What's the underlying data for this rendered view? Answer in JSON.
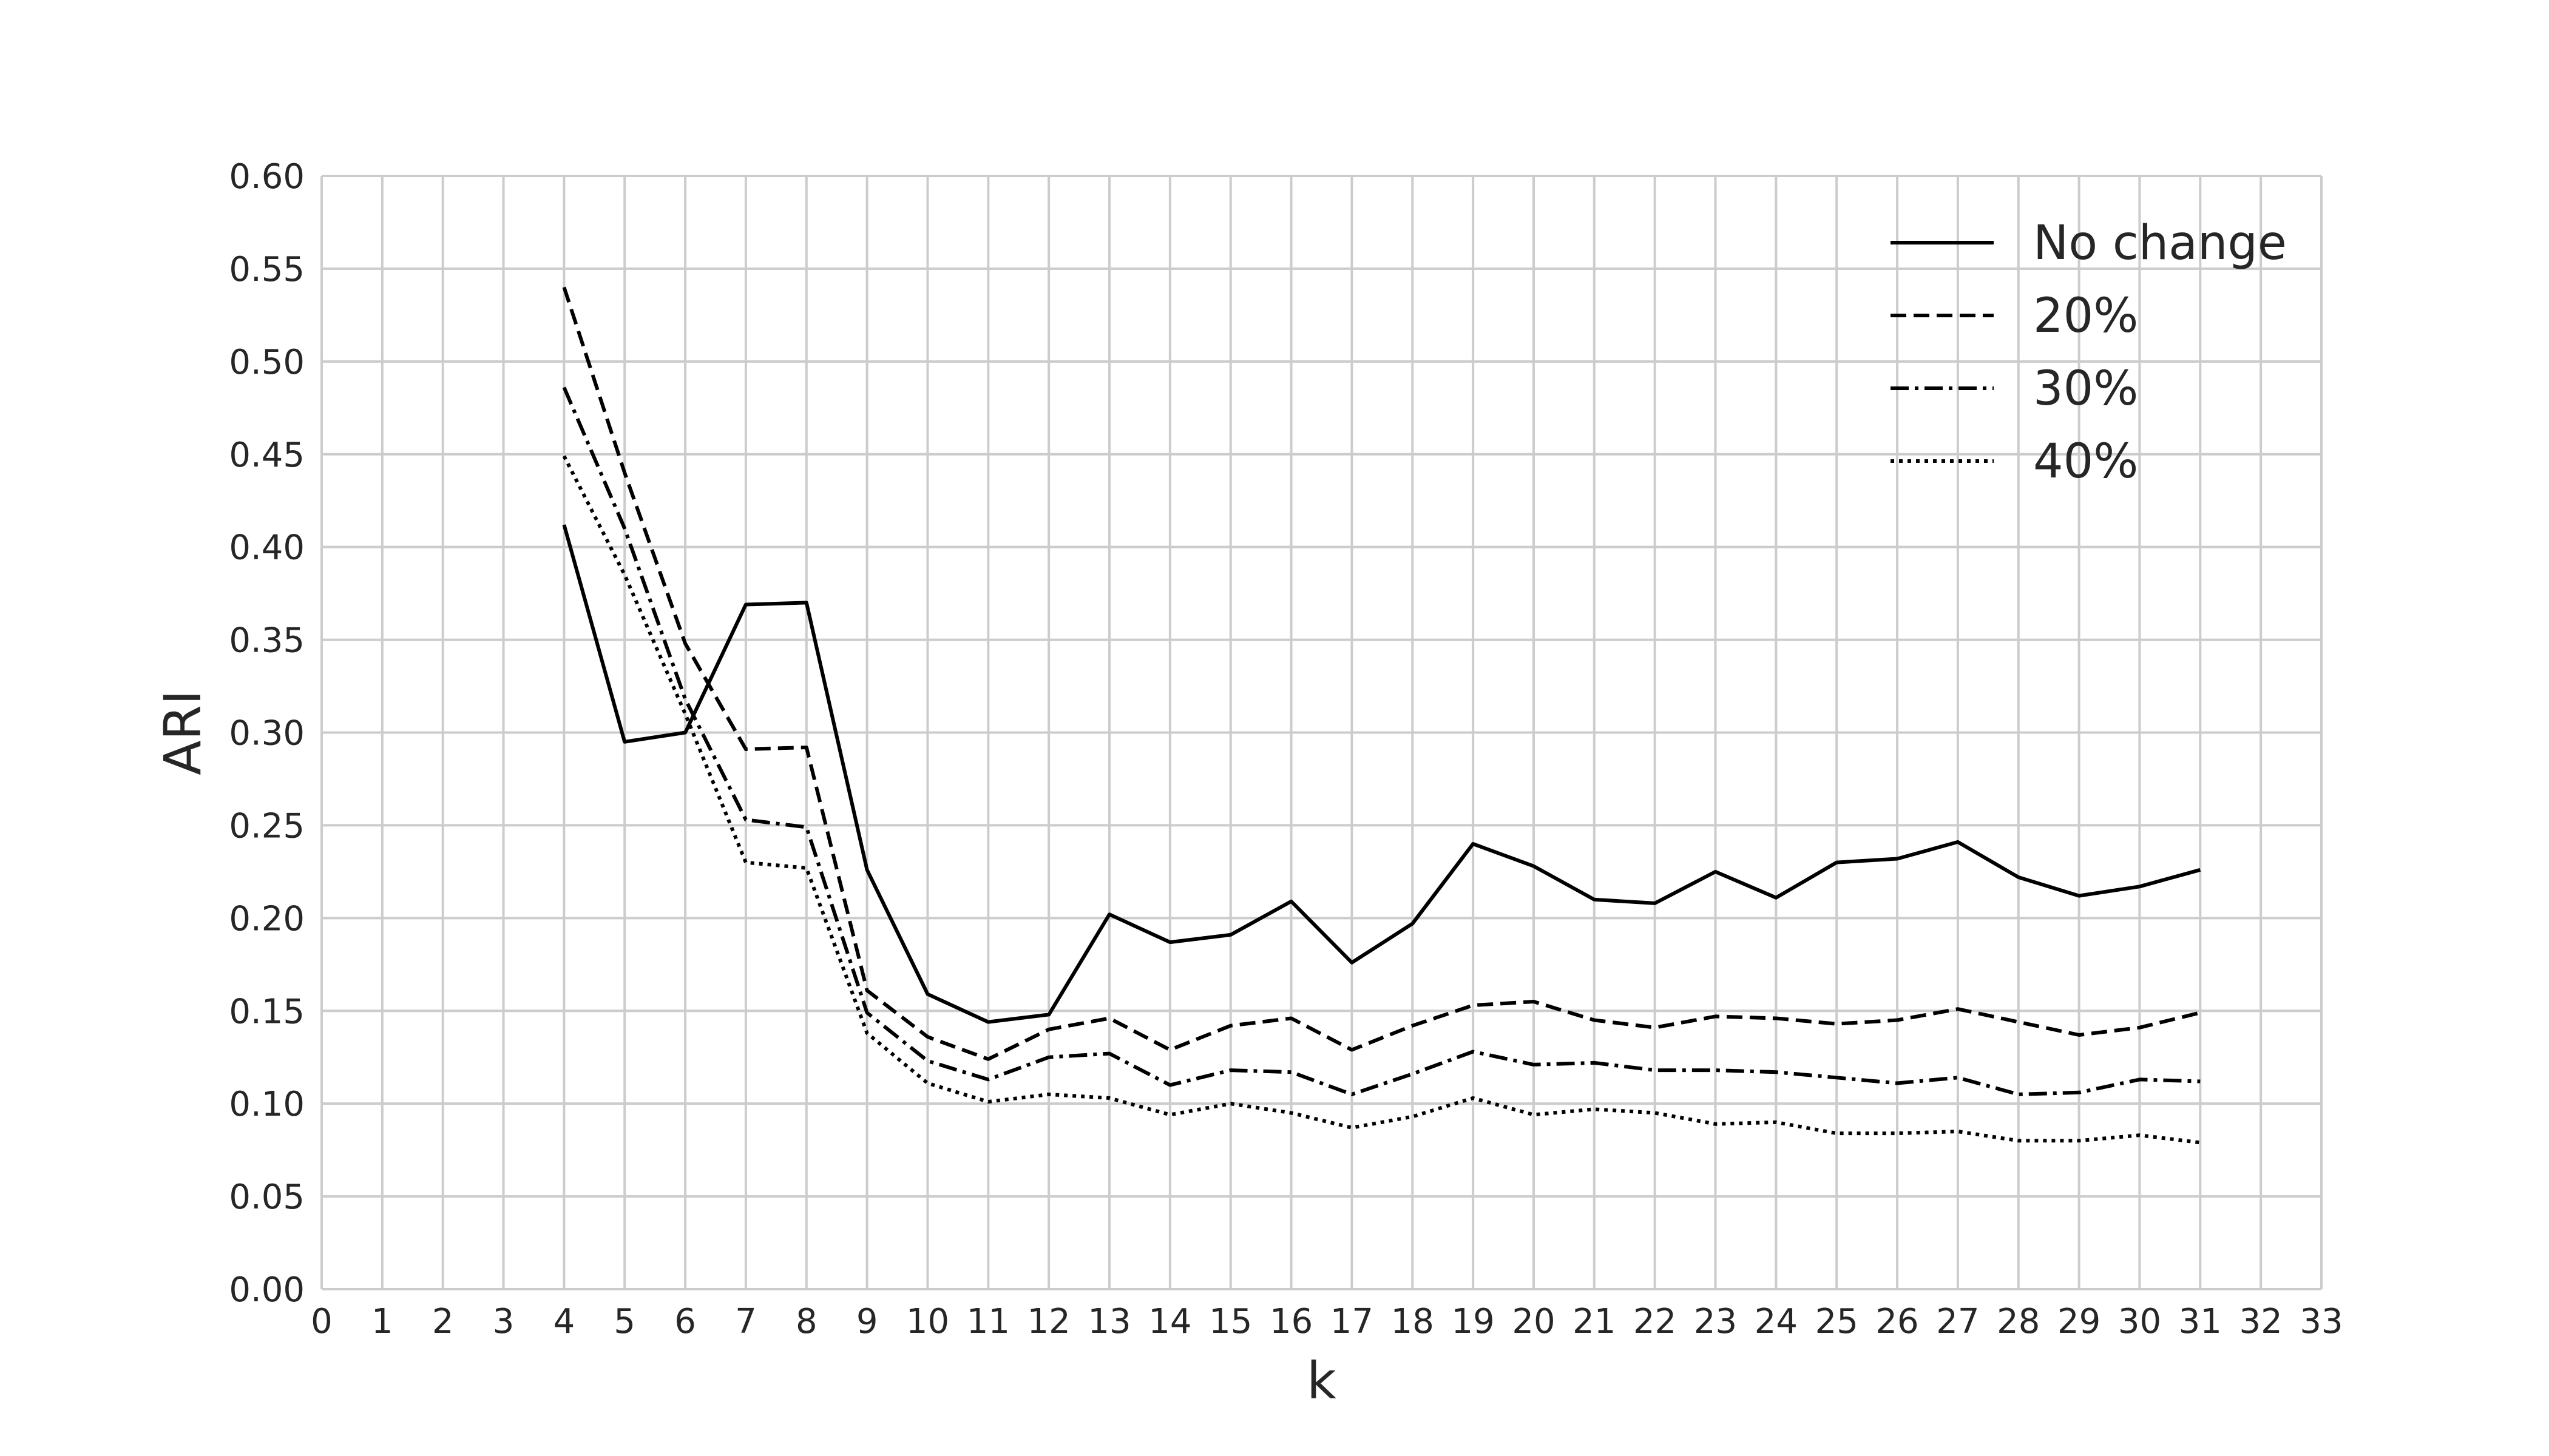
{
  "chart_data": {
    "type": "line",
    "title": "",
    "xlabel": "k",
    "ylabel": "ARI",
    "xlim": [
      0,
      33
    ],
    "ylim": [
      0,
      0.6
    ],
    "xticks": [
      "0",
      "1",
      "2",
      "3",
      "4",
      "5",
      "6",
      "7",
      "8",
      "9",
      "10",
      "11",
      "12",
      "13",
      "14",
      "15",
      "16",
      "17",
      "18",
      "19",
      "20",
      "21",
      "22",
      "23",
      "24",
      "25",
      "26",
      "27",
      "28",
      "29",
      "30",
      "31",
      "32",
      "33"
    ],
    "yticks": [
      "0.00",
      "0.05",
      "0.10",
      "0.15",
      "0.20",
      "0.25",
      "0.30",
      "0.35",
      "0.40",
      "0.45",
      "0.50",
      "0.55",
      "0.60"
    ],
    "grid": true,
    "legend_position": "top-right",
    "x": [
      4,
      5,
      6,
      7,
      8,
      9,
      10,
      11,
      12,
      13,
      14,
      15,
      16,
      17,
      18,
      19,
      20,
      21,
      22,
      23,
      24,
      25,
      26,
      27,
      28,
      29,
      30,
      31
    ],
    "series": [
      {
        "name": "No change",
        "style": "solid",
        "color": "#000000",
        "values": [
          0.412,
          0.295,
          0.3,
          0.369,
          0.37,
          0.226,
          0.159,
          0.144,
          0.148,
          0.202,
          0.187,
          0.191,
          0.209,
          0.176,
          0.197,
          0.24,
          0.228,
          0.21,
          0.208,
          0.225,
          0.211,
          0.23,
          0.232,
          0.241,
          0.222,
          0.212,
          0.217,
          0.226
        ]
      },
      {
        "name": "20%",
        "style": "dashed",
        "color": "#000000",
        "values": [
          0.54,
          0.44,
          0.348,
          0.291,
          0.292,
          0.161,
          0.136,
          0.124,
          0.14,
          0.146,
          0.129,
          0.142,
          0.146,
          0.129,
          0.142,
          0.153,
          0.155,
          0.145,
          0.141,
          0.147,
          0.146,
          0.143,
          0.145,
          0.151,
          0.144,
          0.137,
          0.141,
          0.149
        ]
      },
      {
        "name": "30%",
        "style": "dashdot",
        "color": "#000000",
        "values": [
          0.486,
          0.41,
          0.318,
          0.253,
          0.249,
          0.149,
          0.123,
          0.113,
          0.125,
          0.127,
          0.11,
          0.118,
          0.117,
          0.105,
          0.116,
          0.128,
          0.121,
          0.122,
          0.118,
          0.118,
          0.117,
          0.114,
          0.111,
          0.114,
          0.105,
          0.106,
          0.113,
          0.112
        ]
      },
      {
        "name": "40%",
        "style": "dotted",
        "color": "#000000",
        "values": [
          0.449,
          0.385,
          0.31,
          0.23,
          0.227,
          0.138,
          0.111,
          0.101,
          0.105,
          0.103,
          0.094,
          0.1,
          0.095,
          0.087,
          0.093,
          0.103,
          0.094,
          0.097,
          0.095,
          0.089,
          0.09,
          0.084,
          0.084,
          0.085,
          0.08,
          0.08,
          0.083,
          0.079
        ]
      }
    ],
    "colors": {
      "grid": "#cccccc",
      "text": "#262626",
      "background": "#ffffff"
    }
  }
}
